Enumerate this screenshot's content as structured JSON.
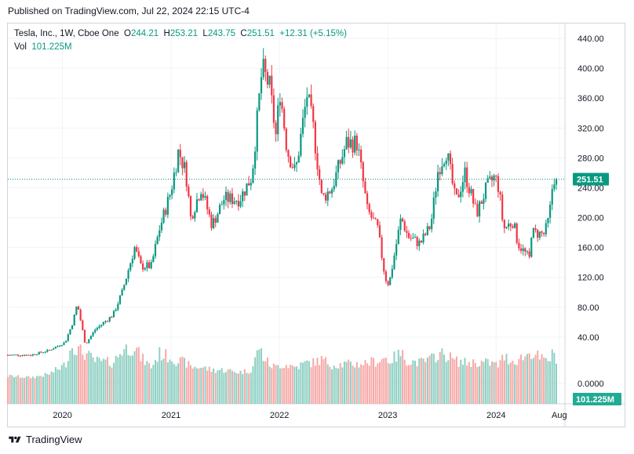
{
  "published_text": "Published on TradingView.com, Jul 22, 2024 22:15 UTC-4",
  "legend": {
    "symbol": "Tesla, Inc., 1W, Cboe One",
    "o_label": "O",
    "o": "244.21",
    "h_label": "H",
    "h": "253.21",
    "l_label": "L",
    "l": "243.75",
    "c_label": "C",
    "c": "251.51",
    "change": "+12.31 (+5.15%)",
    "vol_label": "Vol",
    "vol": "101.225M"
  },
  "colors": {
    "up": "#089981",
    "down": "#f23645",
    "vol_up": "#8fd0c3",
    "vol_down": "#f7a9a7",
    "grid": "#f0f3fa",
    "last": "#089981"
  },
  "footer": {
    "brand": "TradingView"
  },
  "chart_data": {
    "type": "candlestick",
    "y_ticks": [
      "440.00",
      "400.00",
      "360.00",
      "320.00",
      "280.00",
      "240.00",
      "200.00",
      "160.00",
      "120.00",
      "80.00",
      "40.00",
      "0.0000"
    ],
    "x_ticks": [
      "2020",
      "2021",
      "2022",
      "2023",
      "2024",
      "Aug"
    ],
    "ylim": [
      0,
      460
    ],
    "last_price_label": "251.51",
    "last_price": 251.51,
    "volume_label": "101.225M",
    "anchors": [
      [
        "2019-07-01",
        16,
        10
      ],
      [
        "2019-09-15",
        16,
        8
      ],
      [
        "2019-11-15",
        22,
        12
      ],
      [
        "2020-01-10",
        33,
        25
      ],
      [
        "2020-02-05",
        60,
        55
      ],
      [
        "2020-02-20",
        85,
        45
      ],
      [
        "2020-03-18",
        30,
        40
      ],
      [
        "2020-04-20",
        50,
        30
      ],
      [
        "2020-06-20",
        70,
        28
      ],
      [
        "2020-07-20",
        100,
        45
      ],
      [
        "2020-08-31",
        160,
        50
      ],
      [
        "2020-09-21",
        135,
        35
      ],
      [
        "2020-10-26",
        135,
        22
      ],
      [
        "2020-11-23",
        185,
        40
      ],
      [
        "2020-12-31",
        235,
        35
      ],
      [
        "2021-01-26",
        290,
        30
      ],
      [
        "2021-02-20",
        260,
        28
      ],
      [
        "2021-03-08",
        200,
        22
      ],
      [
        "2021-04-12",
        240,
        22
      ],
      [
        "2021-05-19",
        190,
        18
      ],
      [
        "2021-06-28",
        225,
        18
      ],
      [
        "2021-08-20",
        225,
        15
      ],
      [
        "2021-09-30",
        255,
        18
      ],
      [
        "2021-10-25",
        360,
        50
      ],
      [
        "2021-11-04",
        400,
        38
      ],
      [
        "2021-11-29",
        375,
        25
      ],
      [
        "2021-12-20",
        310,
        22
      ],
      [
        "2022-01-03",
        370,
        25
      ],
      [
        "2022-01-27",
        290,
        25
      ],
      [
        "2022-02-24",
        260,
        22
      ],
      [
        "2022-04-04",
        365,
        28
      ],
      [
        "2022-04-25",
        320,
        28
      ],
      [
        "2022-05-24",
        225,
        32
      ],
      [
        "2022-06-27",
        240,
        25
      ],
      [
        "2022-08-15",
        300,
        26
      ],
      [
        "2022-09-20",
        300,
        26
      ],
      [
        "2022-10-24",
        210,
        28
      ],
      [
        "2022-11-28",
        185,
        30
      ],
      [
        "2022-12-23",
        120,
        35
      ],
      [
        "2023-01-05",
        110,
        30
      ],
      [
        "2023-02-15",
        200,
        40
      ],
      [
        "2023-03-10",
        175,
        30
      ],
      [
        "2023-04-20",
        165,
        28
      ],
      [
        "2023-05-26",
        190,
        32
      ],
      [
        "2023-06-20",
        265,
        40
      ],
      [
        "2023-07-18",
        290,
        38
      ],
      [
        "2023-08-18",
        220,
        30
      ],
      [
        "2023-09-18",
        260,
        28
      ],
      [
        "2023-10-27",
        205,
        28
      ],
      [
        "2023-11-30",
        240,
        28
      ],
      [
        "2023-12-28",
        255,
        26
      ],
      [
        "2024-01-10",
        240,
        24
      ],
      [
        "2024-01-26",
        185,
        36
      ],
      [
        "2024-02-27",
        195,
        30
      ],
      [
        "2024-03-15",
        165,
        32
      ],
      [
        "2024-04-22",
        145,
        40
      ],
      [
        "2024-04-29",
        180,
        42
      ],
      [
        "2024-06-12",
        178,
        30
      ],
      [
        "2024-06-28",
        200,
        32
      ],
      [
        "2024-07-12",
        255,
        40
      ],
      [
        "2024-07-22",
        251.51,
        35
      ]
    ]
  }
}
